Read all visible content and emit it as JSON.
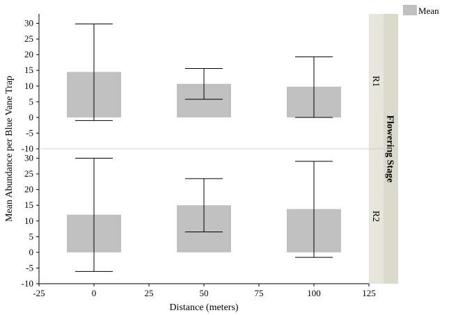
{
  "chart_data": {
    "type": "bar",
    "xlabel": "Distance (meters)",
    "ylabel": "Mean Abundance per Blue Vane Trap",
    "facet_title": "Flowering Stage",
    "legend": {
      "label": "Mean",
      "position": "top-right"
    },
    "x_ticks": [
      -25,
      0,
      25,
      50,
      75,
      100,
      125
    ],
    "xlim": [
      -25,
      125
    ],
    "y_ticks": [
      -10,
      -5,
      0,
      5,
      10,
      15,
      20,
      25,
      30
    ],
    "ylim": [
      -10,
      33
    ],
    "grid": false,
    "colors": {
      "bar": "#c0c0c0",
      "strip_light": "#e6e6dc",
      "strip_dark": "#d9d9cc",
      "divider": "#d0d0d0"
    },
    "panels": [
      {
        "label": "R1",
        "x": [
          0,
          50,
          100
        ],
        "values": [
          14.5,
          10.7,
          9.8
        ],
        "err_low": [
          -1,
          5.8,
          0
        ],
        "err_high": [
          29.8,
          15.6,
          19.3
        ]
      },
      {
        "label": "R2",
        "x": [
          0,
          50,
          100
        ],
        "values": [
          12,
          15,
          13.8
        ],
        "err_low": [
          -6.1,
          6.5,
          -1.6
        ],
        "err_high": [
          30,
          23.5,
          29
        ]
      }
    ]
  }
}
